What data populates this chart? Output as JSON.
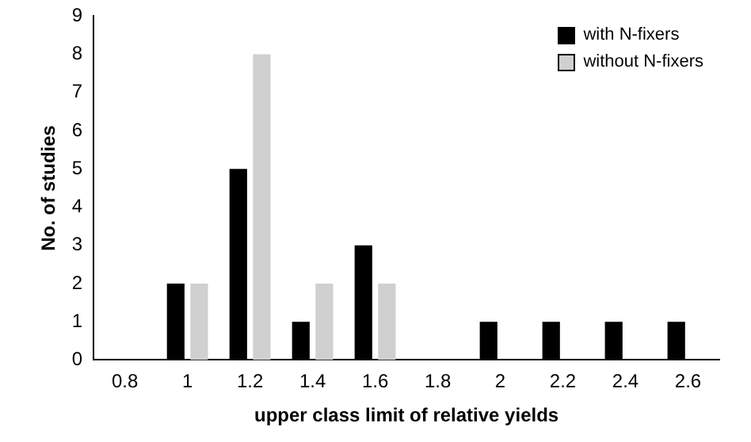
{
  "chart_data": {
    "type": "bar",
    "xlabel": "upper class limit of relative yields",
    "ylabel": "No. of studies",
    "categories": [
      "0.8",
      "1",
      "1.2",
      "1.4",
      "1.6",
      "1.8",
      "2",
      "2.2",
      "2.4",
      "2.6"
    ],
    "series": [
      {
        "name": "with N-fixers",
        "color": "#000000",
        "values": [
          0,
          2,
          5,
          1,
          3,
          0,
          1,
          1,
          1,
          1
        ]
      },
      {
        "name": "without N-fixers",
        "color": "#d0d0d0",
        "values": [
          0,
          2,
          8,
          2,
          2,
          0,
          0,
          0,
          0,
          0
        ]
      }
    ],
    "ylim": [
      0,
      9
    ],
    "yticks": [
      0,
      1,
      2,
      3,
      4,
      5,
      6,
      7,
      8,
      9
    ],
    "grid": false,
    "legend": "top right"
  }
}
